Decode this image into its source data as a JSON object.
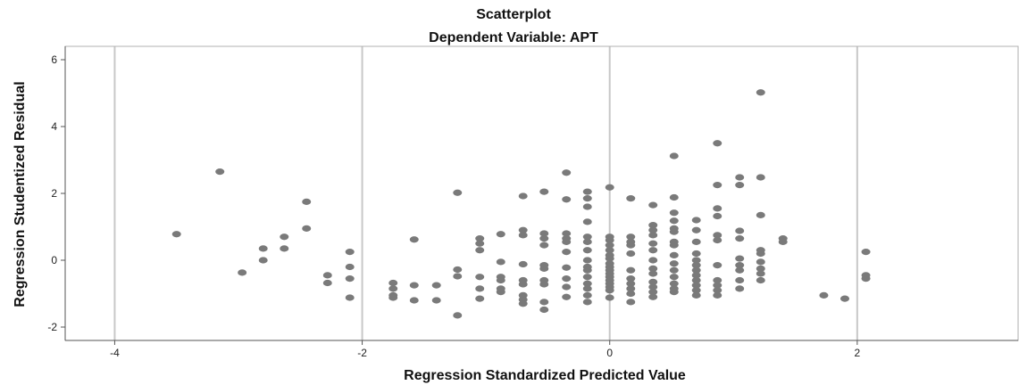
{
  "chart_data": {
    "type": "scatter",
    "title": "Scatterplot",
    "subtitle": "Dependent Variable: APT",
    "xlabel": "Regression Standardized Predicted Value",
    "ylabel": "Regression Studentized Residual",
    "xlim": [
      -4.4,
      3.3
    ],
    "ylim": [
      -2.4,
      6.4
    ],
    "x_ticks": [
      -4,
      -2,
      0,
      2
    ],
    "y_ticks": [
      -2,
      0,
      2,
      4,
      6
    ],
    "grid": "vertical-major",
    "point_color": "#7a7a7a",
    "grid_color": "#c8c8c8",
    "points": [
      [
        -3.5,
        0.78
      ],
      [
        -3.15,
        2.65
      ],
      [
        -2.97,
        -0.37
      ],
      [
        -2.8,
        0.35
      ],
      [
        -2.8,
        0.0
      ],
      [
        -2.63,
        0.7
      ],
      [
        -2.63,
        0.35
      ],
      [
        -2.45,
        1.75
      ],
      [
        -2.45,
        0.95
      ],
      [
        -2.28,
        -0.45
      ],
      [
        -2.28,
        -0.68
      ],
      [
        -2.1,
        0.25
      ],
      [
        -2.1,
        -0.2
      ],
      [
        -2.1,
        -0.55
      ],
      [
        -2.1,
        -1.12
      ],
      [
        -1.75,
        -0.68
      ],
      [
        -1.75,
        -0.85
      ],
      [
        -1.75,
        -1.05
      ],
      [
        -1.75,
        -1.12
      ],
      [
        -1.58,
        0.62
      ],
      [
        -1.58,
        -0.75
      ],
      [
        -1.58,
        -1.2
      ],
      [
        -1.4,
        -0.75
      ],
      [
        -1.4,
        -1.2
      ],
      [
        -1.23,
        2.02
      ],
      [
        -1.23,
        -0.28
      ],
      [
        -1.23,
        -0.48
      ],
      [
        -1.23,
        -1.65
      ],
      [
        -1.05,
        0.65
      ],
      [
        -1.05,
        0.5
      ],
      [
        -1.05,
        0.3
      ],
      [
        -1.05,
        -0.5
      ],
      [
        -1.05,
        -0.85
      ],
      [
        -1.05,
        -1.15
      ],
      [
        -0.88,
        0.78
      ],
      [
        -0.88,
        -0.05
      ],
      [
        -0.88,
        -0.5
      ],
      [
        -0.88,
        -0.6
      ],
      [
        -0.88,
        -0.85
      ],
      [
        -0.88,
        -0.95
      ],
      [
        -0.7,
        1.92
      ],
      [
        -0.7,
        0.9
      ],
      [
        -0.7,
        0.75
      ],
      [
        -0.7,
        -0.12
      ],
      [
        -0.7,
        -0.6
      ],
      [
        -0.7,
        -0.72
      ],
      [
        -0.7,
        -1.05
      ],
      [
        -0.7,
        -1.18
      ],
      [
        -0.7,
        -1.3
      ],
      [
        -0.53,
        2.05
      ],
      [
        -0.53,
        0.8
      ],
      [
        -0.53,
        0.65
      ],
      [
        -0.53,
        0.45
      ],
      [
        -0.53,
        -0.15
      ],
      [
        -0.53,
        -0.25
      ],
      [
        -0.53,
        -0.6
      ],
      [
        -0.53,
        -0.72
      ],
      [
        -0.53,
        -1.25
      ],
      [
        -0.53,
        -1.48
      ],
      [
        -0.35,
        2.62
      ],
      [
        -0.35,
        1.82
      ],
      [
        -0.35,
        0.8
      ],
      [
        -0.35,
        0.65
      ],
      [
        -0.35,
        0.55
      ],
      [
        -0.35,
        0.25
      ],
      [
        -0.35,
        -0.22
      ],
      [
        -0.35,
        -0.55
      ],
      [
        -0.35,
        -0.8
      ],
      [
        -0.35,
        -1.1
      ],
      [
        -0.18,
        2.05
      ],
      [
        -0.18,
        1.85
      ],
      [
        -0.18,
        1.6
      ],
      [
        -0.18,
        1.15
      ],
      [
        -0.18,
        0.7
      ],
      [
        -0.18,
        0.55
      ],
      [
        -0.18,
        0.3
      ],
      [
        -0.18,
        0.0
      ],
      [
        -0.18,
        -0.2
      ],
      [
        -0.18,
        -0.3
      ],
      [
        -0.18,
        -0.5
      ],
      [
        -0.18,
        -0.7
      ],
      [
        -0.18,
        -0.85
      ],
      [
        -0.18,
        -1.05
      ],
      [
        -0.18,
        -1.25
      ],
      [
        0.0,
        2.18
      ],
      [
        0.0,
        0.7
      ],
      [
        0.0,
        0.6
      ],
      [
        0.0,
        0.45
      ],
      [
        0.0,
        0.3
      ],
      [
        0.0,
        0.15
      ],
      [
        0.0,
        0.05
      ],
      [
        0.0,
        -0.1
      ],
      [
        0.0,
        -0.2
      ],
      [
        0.0,
        -0.3
      ],
      [
        0.0,
        -0.4
      ],
      [
        0.0,
        -0.5
      ],
      [
        0.0,
        -0.6
      ],
      [
        0.0,
        -0.7
      ],
      [
        0.0,
        -0.8
      ],
      [
        0.0,
        -0.9
      ],
      [
        0.0,
        -1.12
      ],
      [
        0.17,
        1.85
      ],
      [
        0.17,
        0.7
      ],
      [
        0.17,
        0.55
      ],
      [
        0.17,
        0.45
      ],
      [
        0.17,
        0.2
      ],
      [
        0.17,
        -0.3
      ],
      [
        0.17,
        -0.55
      ],
      [
        0.17,
        -0.7
      ],
      [
        0.17,
        -0.85
      ],
      [
        0.17,
        -1.0
      ],
      [
        0.17,
        -1.25
      ],
      [
        0.35,
        1.65
      ],
      [
        0.35,
        1.05
      ],
      [
        0.35,
        0.9
      ],
      [
        0.35,
        0.75
      ],
      [
        0.35,
        0.5
      ],
      [
        0.35,
        0.3
      ],
      [
        0.35,
        0.0
      ],
      [
        0.35,
        -0.25
      ],
      [
        0.35,
        -0.4
      ],
      [
        0.35,
        -0.65
      ],
      [
        0.35,
        -0.8
      ],
      [
        0.35,
        -0.95
      ],
      [
        0.35,
        -1.1
      ],
      [
        0.52,
        3.12
      ],
      [
        0.52,
        1.88
      ],
      [
        0.52,
        1.42
      ],
      [
        0.52,
        1.18
      ],
      [
        0.52,
        0.95
      ],
      [
        0.52,
        0.85
      ],
      [
        0.52,
        0.55
      ],
      [
        0.52,
        0.45
      ],
      [
        0.52,
        0.15
      ],
      [
        0.52,
        -0.1
      ],
      [
        0.52,
        -0.3
      ],
      [
        0.52,
        -0.5
      ],
      [
        0.52,
        -0.7
      ],
      [
        0.52,
        -0.85
      ],
      [
        0.52,
        -0.95
      ],
      [
        0.7,
        1.2
      ],
      [
        0.7,
        0.9
      ],
      [
        0.7,
        0.55
      ],
      [
        0.7,
        0.2
      ],
      [
        0.7,
        0.0
      ],
      [
        0.7,
        -0.15
      ],
      [
        0.7,
        -0.3
      ],
      [
        0.7,
        -0.45
      ],
      [
        0.7,
        -0.6
      ],
      [
        0.7,
        -0.75
      ],
      [
        0.7,
        -0.9
      ],
      [
        0.7,
        -1.05
      ],
      [
        0.87,
        3.5
      ],
      [
        0.87,
        2.25
      ],
      [
        0.87,
        1.55
      ],
      [
        0.87,
        1.32
      ],
      [
        0.87,
        0.75
      ],
      [
        0.87,
        0.6
      ],
      [
        0.87,
        -0.15
      ],
      [
        0.87,
        -0.6
      ],
      [
        0.87,
        -0.75
      ],
      [
        0.87,
        -0.9
      ],
      [
        0.87,
        -1.05
      ],
      [
        1.05,
        2.48
      ],
      [
        1.05,
        2.25
      ],
      [
        1.05,
        0.88
      ],
      [
        1.05,
        0.65
      ],
      [
        1.05,
        0.05
      ],
      [
        1.05,
        -0.15
      ],
      [
        1.05,
        -0.3
      ],
      [
        1.05,
        -0.6
      ],
      [
        1.05,
        -0.85
      ],
      [
        1.22,
        5.02
      ],
      [
        1.22,
        2.48
      ],
      [
        1.22,
        1.35
      ],
      [
        1.22,
        0.3
      ],
      [
        1.22,
        0.2
      ],
      [
        1.22,
        -0.05
      ],
      [
        1.22,
        -0.25
      ],
      [
        1.22,
        -0.4
      ],
      [
        1.22,
        -0.6
      ],
      [
        1.4,
        0.65
      ],
      [
        1.4,
        0.55
      ],
      [
        1.73,
        -1.05
      ],
      [
        1.9,
        -1.15
      ],
      [
        2.07,
        0.25
      ],
      [
        2.07,
        -0.45
      ],
      [
        2.07,
        -0.55
      ]
    ]
  }
}
